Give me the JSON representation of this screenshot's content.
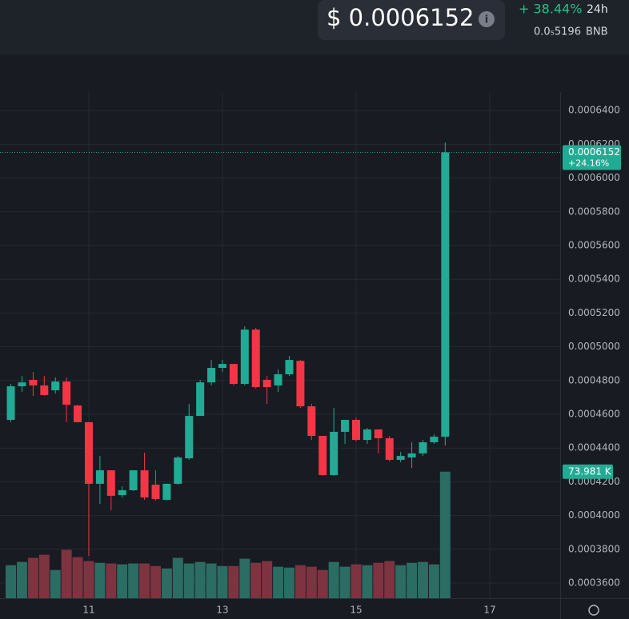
{
  "header": {
    "price": "$ 0.0006152",
    "change": "+ 38.44%",
    "period": "24h",
    "native_price": "0.0₅5196",
    "native_unit": "BNB"
  },
  "chart_data": {
    "type": "candlestick",
    "x": [
      9.8333,
      10,
      10.1667,
      10.3333,
      10.5,
      10.6667,
      10.8333,
      11,
      11.1667,
      11.3333,
      11.5,
      11.6667,
      11.8333,
      12,
      12.1667,
      12.3333,
      12.5,
      12.6667,
      12.8333,
      13,
      13.1667,
      13.3333,
      13.5,
      13.6667,
      13.8333,
      14,
      14.1667,
      14.3333,
      14.5,
      14.6667,
      14.8333,
      15,
      15.1667,
      15.3333,
      15.5,
      15.6667,
      15.8333,
      16,
      16.1667,
      16.3333
    ],
    "open": [
      0.0004567,
      0.0004766,
      0.0004804,
      0.0004771,
      0.0004742,
      0.0004794,
      0.0004652,
      0.0004553,
      0.0004188,
      0.0004268,
      0.0004121,
      0.000415,
      0.0004268,
      0.0004183,
      0.0004093,
      0.0004188,
      0.0004339,
      0.000459,
      0.0004789,
      0.0004875,
      0.0004898,
      0.000478,
      0.0005102,
      0.0004804,
      0.0004771,
      0.0004837,
      0.0004917,
      0.0004647,
      0.0004472,
      0.000424,
      0.0004496,
      0.0004567,
      0.0004448,
      0.000451,
      0.0004458,
      0.000433,
      0.0004344,
      0.0004368,
      0.0004434,
      0.0004467
    ],
    "high": [
      0.000478,
      0.0004827,
      0.0004851,
      0.0004827,
      0.0004818,
      0.0004818,
      0.0004657,
      0.0004553,
      0.0004353,
      0.0004268,
      0.0004173,
      0.0004268,
      0.0004372,
      0.0004268,
      0.0004188,
      0.0004353,
      0.0004662,
      0.0004804,
      0.0004922,
      0.0004922,
      0.0004898,
      0.0005121,
      0.0005112,
      0.0004827,
      0.0004865,
      0.0004946,
      0.0004922,
      0.0004662,
      0.0004472,
      0.0004638,
      0.0004567,
      0.0004581,
      0.0004519,
      0.000451,
      0.0004472,
      0.0004377,
      0.0004434,
      0.0004448,
      0.0004481,
      0.0006211
    ],
    "low": [
      0.0004553,
      0.0004733,
      0.0004709,
      0.0004709,
      0.0004723,
      0.0004553,
      0.0004553,
      0.0003761,
      0.0004069,
      0.0004031,
      0.0004107,
      0.0004145,
      0.0004093,
      0.0004088,
      0.0004088,
      0.0004183,
      0.000433,
      0.000459,
      0.0004771,
      0.0004851,
      0.0004771,
      0.0004771,
      0.0004752,
      0.0004662,
      0.0004733,
      0.0004827,
      0.0004638,
      0.0004448,
      0.0004235,
      0.0004235,
      0.0004425,
      0.0004439,
      0.0004425,
      0.0004368,
      0.000432,
      0.0004316,
      0.0004282,
      0.0004353,
      0.0004425,
      0.0004415
    ],
    "close": [
      0.0004766,
      0.0004789,
      0.0004771,
      0.0004714,
      0.0004794,
      0.0004657,
      0.0004553,
      0.0004188,
      0.0004268,
      0.0004117,
      0.000415,
      0.0004268,
      0.0004107,
      0.0004098,
      0.0004188,
      0.0004344,
      0.000459,
      0.0004789,
      0.0004875,
      0.0004898,
      0.000478,
      0.0005102,
      0.0004761,
      0.0004761,
      0.0004837,
      0.0004922,
      0.0004647,
      0.0004472,
      0.000424,
      0.0004496,
      0.0004567,
      0.0004448,
      0.000451,
      0.0004458,
      0.000433,
      0.0004353,
      0.0004368,
      0.0004434,
      0.0004467,
      0.0006152
    ],
    "volume": [
      19300,
      21200,
      23600,
      25400,
      16500,
      28300,
      24000,
      21700,
      20700,
      20300,
      19800,
      20300,
      20300,
      18800,
      17400,
      23600,
      20300,
      21200,
      20300,
      18800,
      18800,
      23100,
      20700,
      21700,
      18400,
      17900,
      19300,
      18400,
      16500,
      21200,
      18400,
      19800,
      19300,
      20700,
      21700,
      19300,
      20700,
      21200,
      19800,
      73981
    ],
    "volume_value_labels": [
      null,
      null,
      null,
      null,
      null,
      null,
      null,
      null,
      null,
      null,
      null,
      null,
      null,
      null,
      null,
      null,
      null,
      null,
      null,
      null,
      null,
      null,
      null,
      null,
      null,
      null,
      null,
      null,
      null,
      null,
      null,
      null,
      null,
      null,
      null,
      null,
      null,
      null,
      null,
      "73.981 K"
    ],
    "change_label": "+24.16%",
    "up_color": "#22ab94",
    "down_color": "#f23645",
    "up_volume_color": "#2b6c63",
    "down_volume_color": "#7d3440",
    "xlim": [
      9.671,
      18.054
    ],
    "xticks": [
      11,
      13,
      15,
      17
    ],
    "ylim": [
      0.000351,
      0.000651
    ],
    "yticks": [
      {
        "value": 0.00036,
        "label": "0.0003600"
      },
      {
        "value": 0.00038,
        "label": "0.0003800"
      },
      {
        "value": 0.0004,
        "label": "0.0004000"
      },
      {
        "value": 0.00042,
        "label": "0.0004200"
      },
      {
        "value": 0.00044,
        "label": "0.0004400"
      },
      {
        "value": 0.00046,
        "label": "0.0004600"
      },
      {
        "value": 0.00048,
        "label": "0.0004800"
      },
      {
        "value": 0.0005,
        "label": "0.0005000"
      },
      {
        "value": 0.00052,
        "label": "0.0005200"
      },
      {
        "value": 0.00054,
        "label": "0.0005400"
      },
      {
        "value": 0.00056,
        "label": "0.0005600"
      },
      {
        "value": 0.00058,
        "label": "0.0005800"
      },
      {
        "value": 0.0006,
        "label": "0.0006000"
      },
      {
        "value": 0.00062,
        "label": "0.0006200"
      },
      {
        "value": 0.00064,
        "label": "0.0006400"
      }
    ],
    "grid": true
  }
}
